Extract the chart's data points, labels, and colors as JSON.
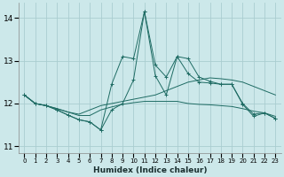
{
  "xlabel": "Humidex (Indice chaleur)",
  "bg_color": "#cce8ea",
  "grid_color": "#aacdd0",
  "line_color": "#1e6b63",
  "xlim": [
    -0.5,
    23.5
  ],
  "ylim": [
    10.85,
    14.35
  ],
  "yticks": [
    11,
    12,
    13,
    14
  ],
  "xticks": [
    0,
    1,
    2,
    3,
    4,
    5,
    6,
    7,
    8,
    9,
    10,
    11,
    12,
    13,
    14,
    15,
    16,
    17,
    18,
    19,
    20,
    21,
    22,
    23
  ],
  "series": {
    "line1_jagged": [
      12.2,
      12.0,
      11.95,
      11.85,
      11.73,
      11.62,
      11.57,
      11.38,
      12.45,
      13.1,
      13.05,
      14.15,
      12.9,
      12.62,
      13.1,
      13.05,
      12.62,
      12.52,
      12.45,
      12.45,
      12.0,
      11.75,
      11.78,
      11.65
    ],
    "line2_jagged": [
      12.2,
      12.0,
      11.95,
      11.85,
      11.73,
      11.62,
      11.57,
      11.38,
      11.85,
      12.0,
      12.55,
      14.15,
      12.65,
      12.2,
      13.1,
      12.7,
      12.5,
      12.48,
      12.45,
      12.45,
      11.98,
      11.7,
      11.78,
      11.65
    ],
    "line3_smooth": [
      12.2,
      12.0,
      11.95,
      11.88,
      11.8,
      11.75,
      11.85,
      11.95,
      12.0,
      12.05,
      12.1,
      12.15,
      12.2,
      12.3,
      12.4,
      12.5,
      12.55,
      12.6,
      12.58,
      12.55,
      12.5,
      12.4,
      12.3,
      12.2
    ],
    "line4_flat": [
      12.2,
      12.0,
      11.95,
      11.88,
      11.8,
      11.72,
      11.72,
      11.85,
      11.92,
      11.98,
      12.02,
      12.05,
      12.05,
      12.05,
      12.05,
      12.0,
      11.98,
      11.97,
      11.95,
      11.93,
      11.88,
      11.82,
      11.78,
      11.7
    ]
  }
}
